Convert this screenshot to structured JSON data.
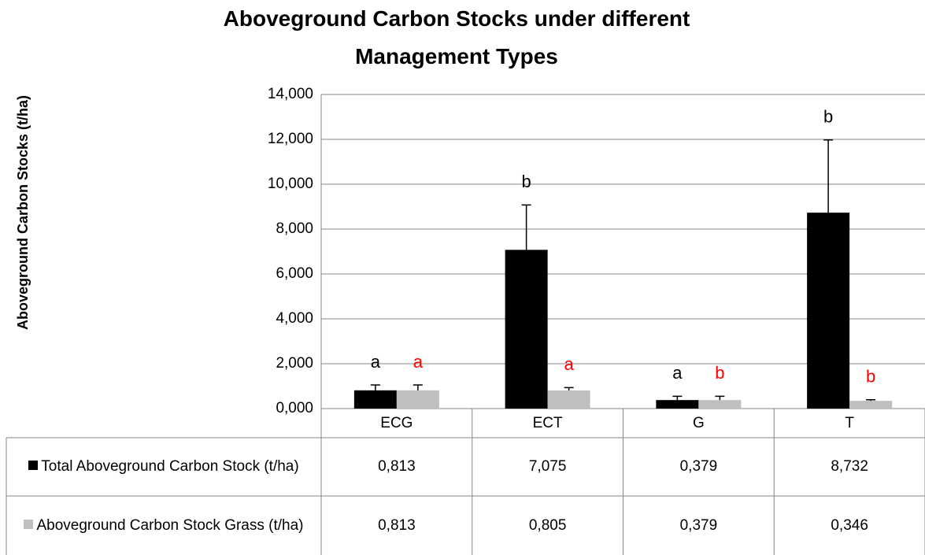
{
  "chart_data": {
    "type": "bar",
    "title": "Aboveground Carbon Stocks under different Management Types",
    "y_label": "Aboveground Carbon Stocks (t/ha)",
    "categories": [
      "ECG",
      "ECT",
      "G",
      "T"
    ],
    "series": [
      {
        "name": "Total Aboveground Carbon Stock (t/ha)",
        "color": "#000000",
        "values": [
          0.813,
          7.075,
          0.379,
          8.732
        ],
        "value_labels": [
          "0,813",
          "7,075",
          "0,379",
          "8,732"
        ],
        "errors": [
          0.24,
          2.0,
          0.17,
          3.24
        ],
        "letters": [
          "a",
          "b",
          "a",
          "b"
        ],
        "letter_color": "#000000"
      },
      {
        "name": "Aboveground Carbon Stock Grass (t/ha)",
        "color": "#bfbfbf",
        "values": [
          0.813,
          0.805,
          0.379,
          0.346
        ],
        "value_labels": [
          "0,813",
          "0,805",
          "0,379",
          "0,346"
        ],
        "errors": [
          0.24,
          0.13,
          0.17,
          0.05
        ],
        "letters": [
          "a",
          "a",
          "b",
          "b"
        ],
        "letter_color": "#ff0000"
      }
    ],
    "ylim": [
      0,
      14
    ],
    "yticks": [
      {
        "value": 0,
        "label": "0,000"
      },
      {
        "value": 2,
        "label": "2,000"
      },
      {
        "value": 4,
        "label": "4,000"
      },
      {
        "value": 6,
        "label": "6,000"
      },
      {
        "value": 8,
        "label": "8,000"
      },
      {
        "value": 10,
        "label": "10,000"
      },
      {
        "value": 12,
        "label": "12,000"
      },
      {
        "value": 14,
        "label": "14,000"
      }
    ],
    "grid": true
  }
}
